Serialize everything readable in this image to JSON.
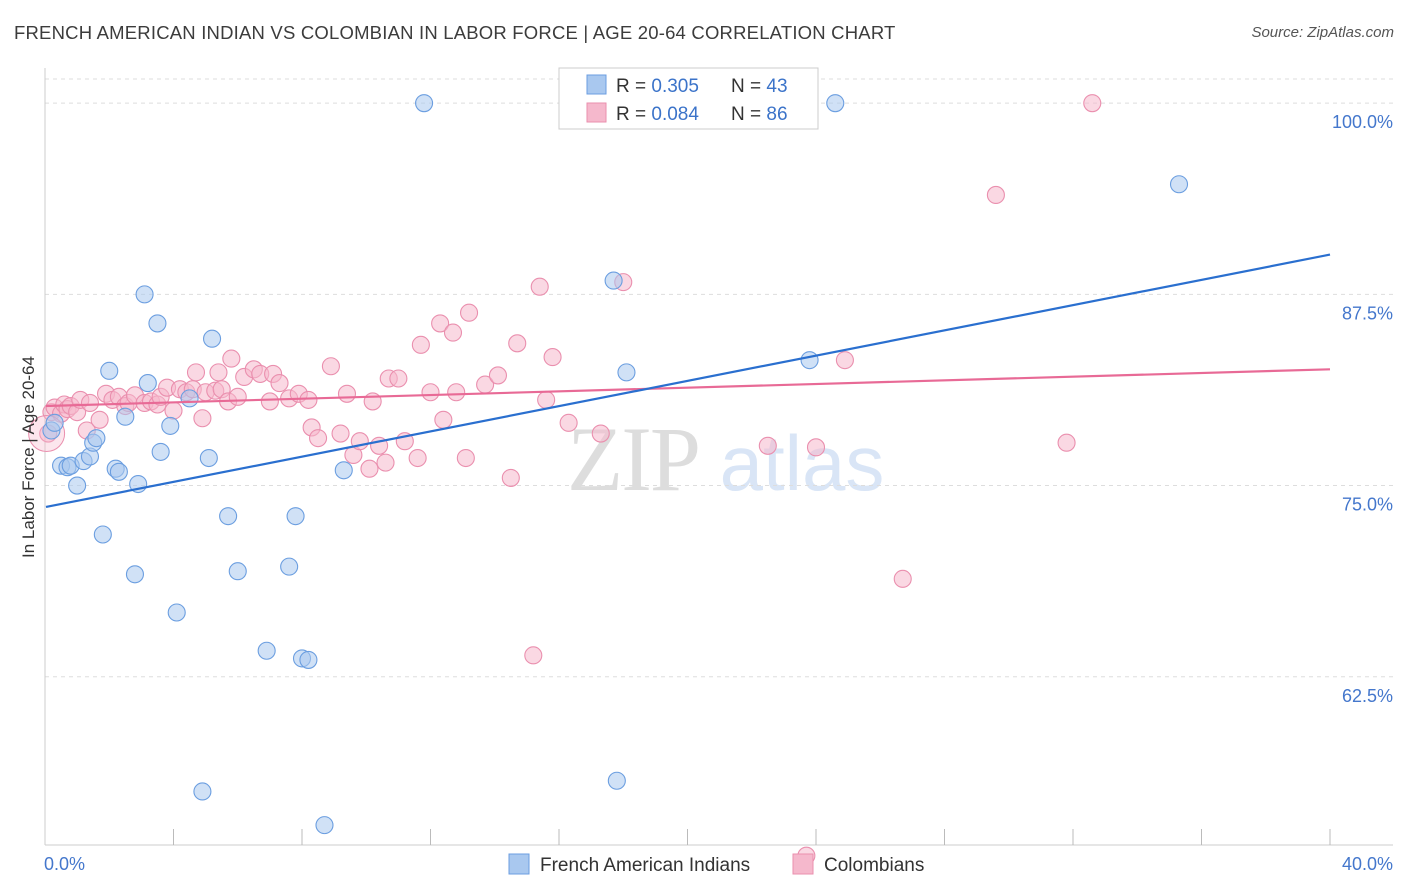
{
  "chart_data": {
    "type": "scatter",
    "title": "FRENCH AMERICAN INDIAN VS COLOMBIAN IN LABOR FORCE | AGE 20-64 CORRELATION CHART",
    "source": "Source: ZipAtlas.com",
    "xlabel": "",
    "ylabel": "In Labor Force | Age 20-64",
    "xlim": [
      0,
      40
    ],
    "ylim": [
      51.5,
      102.3
    ],
    "x_tick_labels": [
      "0.0%",
      "40.0%"
    ],
    "y_ticks": [
      62.5,
      75.0,
      87.5,
      100.0
    ],
    "y_tick_labels": [
      "62.5%",
      "75.0%",
      "87.5%",
      "100.0%"
    ],
    "grid": true,
    "legend_position": "top-center",
    "watermark": "ZIPatlas",
    "colors": {
      "french_fill": "#a9c8ef",
      "french_stroke": "#6b9ee0",
      "french_line": "#2a6fcf",
      "colombian_fill": "#f5b8cc",
      "colombian_stroke": "#ea8fae",
      "colombian_line": "#e86a96",
      "value_text": "#3b73c9",
      "axis_text": "#4477cc",
      "grid": "#dddddd"
    },
    "legend": [
      {
        "r_label": "R = ",
        "r_value": "0.305",
        "n_label": "N = ",
        "n_value": "43"
      },
      {
        "r_label": "R = ",
        "r_value": "0.084",
        "n_label": "N = ",
        "n_value": "86"
      }
    ],
    "series": [
      {
        "name": "French American Indians",
        "trend": {
          "x": [
            0,
            40
          ],
          "y": [
            73.6,
            90.1
          ]
        },
        "points": [
          [
            0.2,
            78.6
          ],
          [
            0.3,
            79.1
          ],
          [
            0.5,
            76.3
          ],
          [
            0.7,
            76.2
          ],
          [
            0.8,
            76.3
          ],
          [
            1.0,
            75.0
          ],
          [
            1.2,
            76.6
          ],
          [
            1.4,
            76.9
          ],
          [
            1.5,
            77.8
          ],
          [
            1.6,
            78.1
          ],
          [
            1.8,
            71.8
          ],
          [
            2.0,
            82.5
          ],
          [
            2.2,
            76.1
          ],
          [
            2.3,
            75.9
          ],
          [
            2.5,
            79.5
          ],
          [
            2.8,
            69.2
          ],
          [
            2.9,
            75.1
          ],
          [
            3.1,
            87.5
          ],
          [
            3.2,
            81.7
          ],
          [
            3.5,
            85.6
          ],
          [
            3.6,
            77.2
          ],
          [
            3.9,
            78.9
          ],
          [
            4.1,
            66.7
          ],
          [
            4.5,
            80.7
          ],
          [
            4.9,
            55.0
          ],
          [
            5.1,
            76.8
          ],
          [
            5.2,
            84.6
          ],
          [
            5.7,
            73.0
          ],
          [
            6.0,
            69.4
          ],
          [
            6.9,
            64.2
          ],
          [
            7.6,
            69.7
          ],
          [
            7.8,
            73.0
          ],
          [
            8.0,
            63.7
          ],
          [
            8.2,
            63.6
          ],
          [
            8.7,
            52.8
          ],
          [
            9.3,
            76.0
          ],
          [
            11.8,
            100.0
          ],
          [
            17.7,
            88.4
          ],
          [
            17.8,
            55.7
          ],
          [
            18.1,
            82.4
          ],
          [
            23.8,
            83.2
          ],
          [
            24.6,
            100.0
          ],
          [
            35.3,
            94.7
          ]
        ]
      },
      {
        "name": "Colombians",
        "trend": {
          "x": [
            0,
            40
          ],
          "y": [
            80.2,
            82.6
          ]
        },
        "points": [
          [
            0.1,
            78.4
          ],
          [
            0.2,
            79.8
          ],
          [
            0.3,
            80.1
          ],
          [
            0.5,
            79.7
          ],
          [
            0.6,
            80.3
          ],
          [
            0.7,
            80.0
          ],
          [
            0.8,
            80.2
          ],
          [
            1.0,
            79.8
          ],
          [
            1.1,
            80.6
          ],
          [
            1.3,
            78.6
          ],
          [
            1.4,
            80.4
          ],
          [
            1.7,
            79.3
          ],
          [
            1.9,
            81.0
          ],
          [
            2.1,
            80.6
          ],
          [
            2.3,
            80.8
          ],
          [
            2.5,
            80.2
          ],
          [
            2.6,
            80.4
          ],
          [
            2.8,
            80.9
          ],
          [
            3.1,
            80.4
          ],
          [
            3.3,
            80.5
          ],
          [
            3.5,
            80.3
          ],
          [
            3.6,
            80.8
          ],
          [
            3.8,
            81.4
          ],
          [
            4.0,
            79.9
          ],
          [
            4.2,
            81.3
          ],
          [
            4.4,
            81.1
          ],
          [
            4.6,
            81.3
          ],
          [
            4.7,
            82.4
          ],
          [
            4.9,
            79.4
          ],
          [
            5.0,
            81.1
          ],
          [
            5.3,
            81.2
          ],
          [
            5.4,
            82.4
          ],
          [
            5.5,
            81.3
          ],
          [
            5.7,
            80.5
          ],
          [
            5.8,
            83.3
          ],
          [
            6.0,
            80.8
          ],
          [
            6.2,
            82.1
          ],
          [
            6.5,
            82.6
          ],
          [
            6.7,
            82.3
          ],
          [
            7.0,
            80.5
          ],
          [
            7.1,
            82.3
          ],
          [
            7.3,
            81.7
          ],
          [
            7.6,
            80.7
          ],
          [
            7.9,
            81.0
          ],
          [
            8.2,
            80.6
          ],
          [
            8.3,
            78.8
          ],
          [
            8.5,
            78.1
          ],
          [
            8.9,
            82.8
          ],
          [
            9.2,
            78.4
          ],
          [
            9.4,
            81.0
          ],
          [
            9.6,
            77.0
          ],
          [
            9.8,
            77.9
          ],
          [
            10.1,
            76.1
          ],
          [
            10.2,
            80.5
          ],
          [
            10.4,
            77.6
          ],
          [
            10.6,
            76.5
          ],
          [
            10.7,
            82.0
          ],
          [
            11.0,
            82.0
          ],
          [
            11.2,
            77.9
          ],
          [
            11.6,
            76.8
          ],
          [
            11.7,
            84.2
          ],
          [
            12.0,
            81.1
          ],
          [
            12.3,
            85.6
          ],
          [
            12.4,
            79.3
          ],
          [
            12.7,
            85.0
          ],
          [
            12.8,
            81.1
          ],
          [
            13.1,
            76.8
          ],
          [
            13.2,
            86.3
          ],
          [
            13.7,
            81.6
          ],
          [
            14.1,
            82.2
          ],
          [
            14.5,
            75.5
          ],
          [
            14.7,
            84.3
          ],
          [
            15.2,
            63.9
          ],
          [
            15.4,
            88.0
          ],
          [
            15.6,
            80.6
          ],
          [
            15.8,
            83.4
          ],
          [
            16.3,
            79.1
          ],
          [
            17.3,
            78.4
          ],
          [
            18.0,
            88.3
          ],
          [
            22.5,
            77.6
          ],
          [
            23.7,
            50.8
          ],
          [
            24.0,
            77.5
          ],
          [
            24.9,
            83.2
          ],
          [
            26.7,
            68.9
          ],
          [
            29.6,
            94.0
          ],
          [
            31.8,
            77.8
          ],
          [
            32.6,
            100.0
          ]
        ]
      }
    ]
  }
}
